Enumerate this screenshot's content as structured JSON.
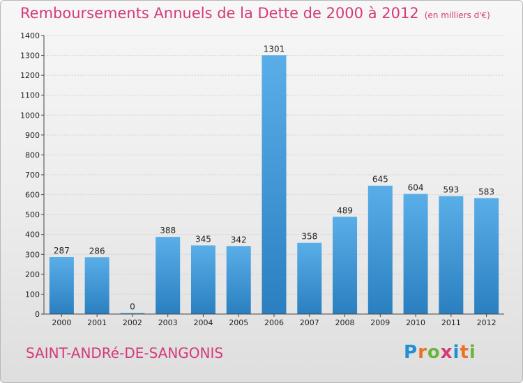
{
  "title": "Remboursements Annuels de la Dette de 2000 à 2012",
  "unit": "(en milliers d'€)",
  "commune": "SAINT-ANDRé-DE-SANGONIS",
  "logo": {
    "letters": [
      "P",
      "r",
      "o",
      "x",
      "i",
      "t",
      "i"
    ],
    "colors": [
      "#1f8fd6",
      "#e8742a",
      "#6cb33f",
      "#d43a78",
      "#1f8fd6",
      "#e8742a",
      "#6cb33f"
    ]
  },
  "colors": {
    "bar_light": "#5aaee8",
    "bar_dark": "#2a7fc0",
    "accent": "#d43a78"
  },
  "chart_data": {
    "type": "bar",
    "categories": [
      "2000",
      "2001",
      "2002",
      "2003",
      "2004",
      "2005",
      "2006",
      "2007",
      "2008",
      "2009",
      "2010",
      "2011",
      "2012"
    ],
    "values": [
      287,
      286,
      0,
      388,
      345,
      342,
      1301,
      358,
      489,
      645,
      604,
      593,
      583
    ],
    "labels": [
      "287",
      "286",
      "0",
      "388",
      "345",
      "342",
      "1301",
      "358",
      "489",
      "645",
      "604",
      "593",
      "583"
    ],
    "yticks": [
      "0",
      "100",
      "200",
      "300",
      "400",
      "500",
      "600",
      "700",
      "800",
      "900",
      "1000",
      "1100",
      "1200",
      "1300",
      "1400"
    ],
    "ylim": [
      0,
      1400
    ],
    "grid": true
  }
}
